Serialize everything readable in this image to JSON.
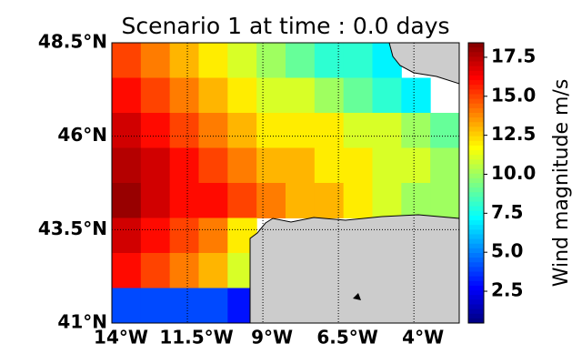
{
  "chart_data": {
    "type": "heatmap",
    "title": "Scenario 1 at time : 0.0 days",
    "xlim": [
      -14,
      -2.5
    ],
    "ylim": [
      41,
      48.5
    ],
    "xticks": [
      {
        "value": -14,
        "label": "14°W"
      },
      {
        "value": -11.5,
        "label": "11.5°W"
      },
      {
        "value": -9,
        "label": "9°W"
      },
      {
        "value": -6.5,
        "label": "6.5°W"
      },
      {
        "value": -4,
        "label": "4°W"
      }
    ],
    "yticks": [
      {
        "value": 41,
        "label": "41°N"
      },
      {
        "value": 43.5,
        "label": "43.5°N"
      },
      {
        "value": 46,
        "label": "46°N"
      },
      {
        "value": 48.5,
        "label": "48.5°N"
      }
    ],
    "values": [
      [
        15,
        14,
        13,
        12,
        11,
        10,
        9,
        8,
        8,
        7,
        null,
        null
      ],
      [
        16,
        15,
        14,
        13,
        12,
        11,
        11,
        10,
        9,
        8,
        7,
        null
      ],
      [
        17,
        16,
        15,
        14,
        13,
        12,
        12,
        12,
        11,
        11,
        10,
        9
      ],
      [
        17.5,
        17,
        16,
        15,
        14,
        13,
        13,
        12,
        12,
        11,
        11,
        10
      ],
      [
        18,
        17,
        16,
        16,
        15,
        14,
        13,
        13,
        12,
        11,
        10,
        10
      ],
      [
        17,
        16,
        15,
        14,
        12,
        null,
        null,
        null,
        null,
        null,
        null,
        null
      ],
      [
        16,
        15,
        14,
        13,
        11,
        null,
        null,
        null,
        null,
        null,
        null,
        null
      ],
      [
        4,
        4,
        4,
        4,
        3,
        null,
        null,
        null,
        null,
        null,
        null,
        null
      ]
    ],
    "colorbar": {
      "label": "Wind magnitude m/s",
      "lim": [
        0.46,
        18.43
      ],
      "ticks": [
        2.5,
        {
          "value": 5,
          "label": "5.0"
        },
        7.5,
        {
          "value": 10,
          "label": "10.0"
        },
        12.5,
        {
          "value": 15,
          "label": "15.0"
        },
        17.5
      ]
    }
  }
}
